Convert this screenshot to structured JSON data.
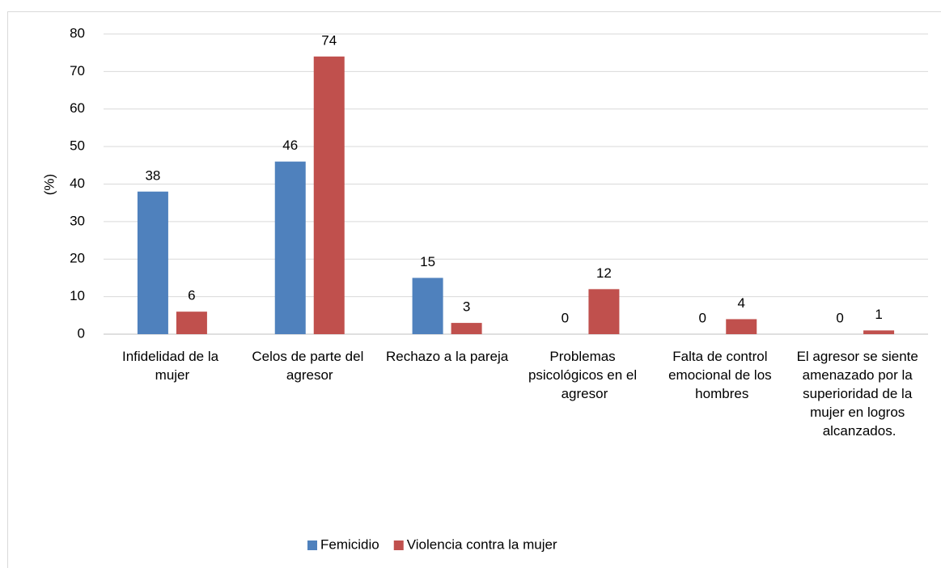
{
  "chart_data": {
    "type": "bar",
    "ylabel": "(%)",
    "categories": [
      "Infidelidad de la mujer",
      "Celos de parte del agresor",
      "Rechazo a la pareja",
      "Problemas psicológicos en el agresor",
      "Falta de control emocional de los hombres",
      "El agresor se siente amenazado por la superioridad de la mujer en logros alcanzados."
    ],
    "series": [
      {
        "name": "Femicidio",
        "color": "#4f81bd",
        "values": [
          38,
          46,
          15,
          0,
          0,
          0
        ]
      },
      {
        "name": "Violencia contra la mujer",
        "color": "#c0504d",
        "values": [
          6,
          74,
          3,
          12,
          4,
          1
        ]
      }
    ],
    "ylim": [
      0,
      80
    ],
    "yticks": [
      0,
      10,
      20,
      30,
      40,
      50,
      60,
      70,
      80
    ],
    "grid": true,
    "legend": "bottom"
  }
}
